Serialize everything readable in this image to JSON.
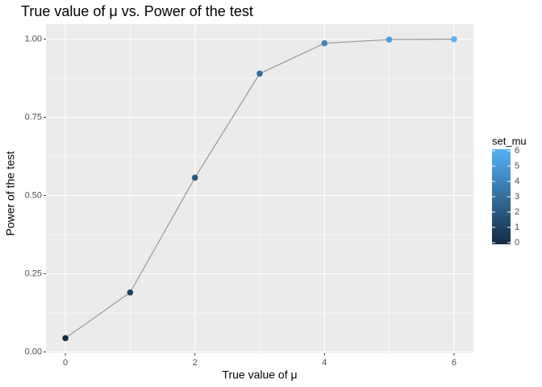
{
  "chart_data": {
    "type": "line",
    "title": "True value of μ vs. Power of the test",
    "x_label": "True value of μ",
    "y_label": "Power of the test",
    "x": [
      0,
      1,
      2,
      3,
      4,
      5,
      6
    ],
    "series": [
      {
        "values": [
          0.044,
          0.19,
          0.557,
          0.89,
          0.987,
          0.999,
          1.0
        ],
        "color": "#999999"
      }
    ],
    "xlim": [
      -0.3,
      6.3
    ],
    "xticks": [
      0,
      2,
      4,
      6
    ],
    "ylim": [
      -0.004,
      1.048
    ],
    "yticks": [
      {
        "value": 0,
        "label": "0.00"
      },
      {
        "value": 0.25,
        "label": "0.25"
      },
      {
        "value": 0.5,
        "label": "0.50"
      },
      {
        "value": 0.75,
        "label": "0.75"
      },
      {
        "value": 1,
        "label": "1.00"
      }
    ],
    "grid": true,
    "color_scale": {
      "title": "set_mu",
      "low": "#132B43",
      "high": "#56B1F7",
      "lim": [
        0,
        6
      ],
      "ticks": [
        0,
        1,
        2,
        3,
        4,
        5,
        6
      ]
    },
    "legend_position": "right"
  }
}
